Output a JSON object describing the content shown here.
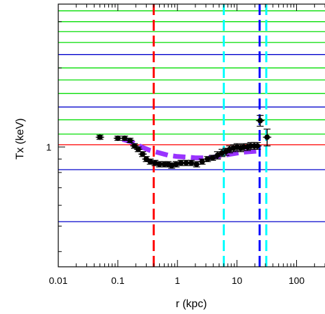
{
  "chart_data": {
    "type": "scatter",
    "title": "",
    "xlabel": "r (kpc)",
    "ylabel": "Tx (keV)",
    "x_scale": "log",
    "y_scale": "log",
    "xlim": [
      0.01,
      300
    ],
    "ylim": [
      0.35,
      3.5
    ],
    "x_ticks": [
      {
        "value": 0.01,
        "label": "0.01"
      },
      {
        "value": 0.1,
        "label": "0.1"
      },
      {
        "value": 1,
        "label": "1"
      },
      {
        "value": 10,
        "label": "10"
      },
      {
        "value": 100,
        "label": "100"
      }
    ],
    "y_ticks": [
      {
        "value": 1,
        "label": "1"
      }
    ],
    "horizontal_lines": [
      {
        "y": 3.3,
        "color": "#00dd00"
      },
      {
        "y": 3.0,
        "color": "#00dd00"
      },
      {
        "y": 2.75,
        "color": "#00dd00"
      },
      {
        "y": 2.5,
        "color": "#00dd00"
      },
      {
        "y": 2.25,
        "color": "#0000cc"
      },
      {
        "y": 2.0,
        "color": "#00dd00"
      },
      {
        "y": 1.8,
        "color": "#00dd00"
      },
      {
        "y": 1.6,
        "color": "#00dd00"
      },
      {
        "y": 1.42,
        "color": "#0000cc"
      },
      {
        "y": 1.27,
        "color": "#00dd00"
      },
      {
        "y": 1.12,
        "color": "#00dd00"
      },
      {
        "y": 1.02,
        "color": "#ff0000"
      },
      {
        "y": 0.82,
        "color": "#0000cc"
      },
      {
        "y": 0.52,
        "color": "#0000cc"
      }
    ],
    "vertical_lines": [
      {
        "x": 0.4,
        "color": "#ff0000",
        "style": "dashed"
      },
      {
        "x": 6.0,
        "color": "#00ffff",
        "style": "dashed"
      },
      {
        "x": 24.0,
        "color": "#0000ff",
        "style": "dashed"
      },
      {
        "x": 31.0,
        "color": "#00ffff",
        "style": "dashed"
      }
    ],
    "series": [
      {
        "kind": "points",
        "color": "#000000",
        "x": [
          0.05,
          0.1,
          0.13,
          0.16,
          0.19,
          0.22,
          0.26,
          0.3,
          0.35,
          0.42,
          0.5,
          0.6,
          0.7,
          0.8,
          0.95,
          1.15,
          1.4,
          1.7,
          2.1,
          2.6,
          3.2,
          3.9,
          4.7,
          5.6,
          6.5,
          7.5,
          8.7,
          10,
          11.5,
          13,
          15,
          17,
          19.5,
          22,
          24.5,
          32
        ],
        "y": [
          1.09,
          1.08,
          1.08,
          1.06,
          1.01,
          0.98,
          0.94,
          0.9,
          0.88,
          0.87,
          0.86,
          0.86,
          0.86,
          0.85,
          0.86,
          0.87,
          0.87,
          0.87,
          0.86,
          0.88,
          0.9,
          0.91,
          0.93,
          0.95,
          0.96,
          0.98,
          0.99,
          1.0,
          0.99,
          1.0,
          1.0,
          1.01,
          1.01,
          1.01,
          1.26,
          1.09
        ],
        "yerr": [
          0.02,
          0.02,
          0.02,
          0.02,
          0.02,
          0.02,
          0.02,
          0.02,
          0.02,
          0.02,
          0.02,
          0.02,
          0.02,
          0.02,
          0.02,
          0.02,
          0.02,
          0.02,
          0.02,
          0.02,
          0.02,
          0.02,
          0.03,
          0.03,
          0.03,
          0.03,
          0.03,
          0.03,
          0.03,
          0.03,
          0.03,
          0.03,
          0.03,
          0.03,
          0.06,
          0.08
        ]
      },
      {
        "kind": "curve",
        "color": "#9933ff",
        "style": "dashed",
        "x": [
          0.12,
          0.18,
          0.25,
          0.35,
          0.5,
          0.7,
          1.0,
          1.5,
          2.0,
          3.0,
          4.0,
          6.0,
          8.0,
          12,
          16,
          22
        ],
        "y": [
          1.07,
          1.04,
          1.0,
          0.97,
          0.95,
          0.93,
          0.92,
          0.915,
          0.91,
          0.91,
          0.915,
          0.93,
          0.94,
          0.955,
          0.96,
          0.965
        ]
      }
    ]
  }
}
